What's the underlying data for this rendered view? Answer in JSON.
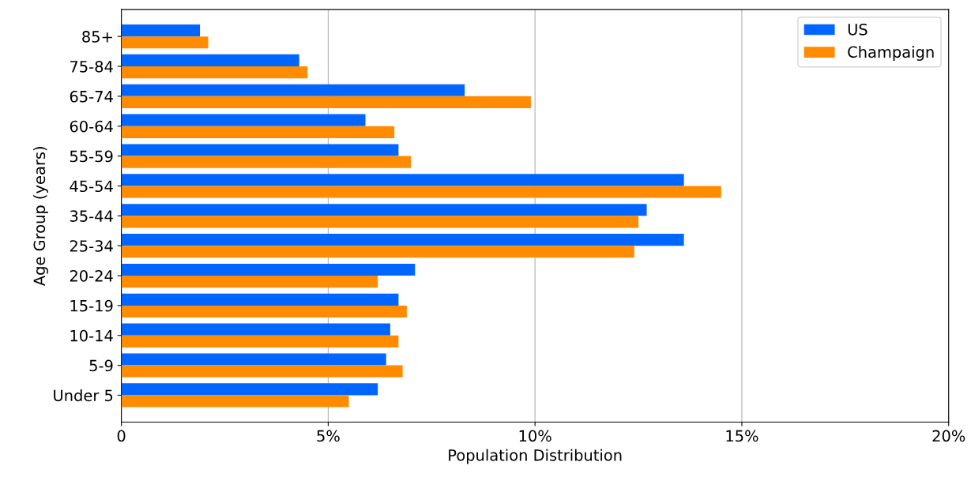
{
  "chart_data": {
    "type": "bar",
    "orientation": "horizontal",
    "xlabel": "Population Distribution",
    "ylabel": "Age Group (years)",
    "categories": [
      "85+",
      "75-84",
      "65-74",
      "60-64",
      "55-59",
      "45-54",
      "35-44",
      "25-34",
      "20-24",
      "15-19",
      "10-14",
      "5-9",
      "Under 5"
    ],
    "series": [
      {
        "name": "US",
        "color": "#0066ff",
        "values": [
          1.9,
          4.3,
          8.3,
          5.9,
          6.7,
          13.6,
          12.7,
          13.6,
          7.1,
          6.7,
          6.5,
          6.4,
          6.2
        ]
      },
      {
        "name": "Champaign",
        "color": "#ff8c00",
        "values": [
          2.1,
          4.5,
          9.9,
          6.6,
          7.0,
          14.5,
          12.5,
          12.4,
          6.2,
          6.9,
          6.7,
          6.8,
          5.5
        ]
      }
    ],
    "xlim": [
      0,
      20
    ],
    "xticks": [
      0,
      {
        "value": 5,
        "label": "5%"
      },
      {
        "value": 10,
        "label": "10%"
      },
      {
        "value": 15,
        "label": "15%"
      },
      {
        "value": 20,
        "label": "20%"
      }
    ],
    "grid": "x",
    "legend": "top right"
  }
}
